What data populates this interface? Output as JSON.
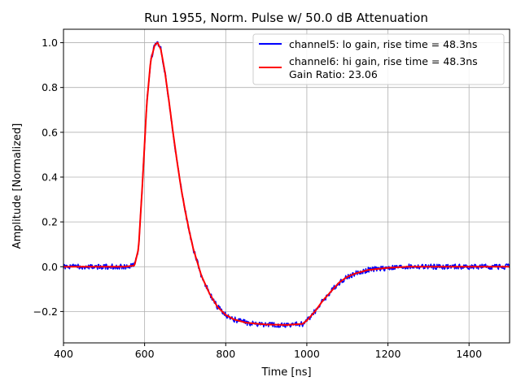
{
  "chart_data": {
    "type": "line",
    "title": "Run 1955, Norm. Pulse w/ 50.0 dB Attenuation",
    "xlabel": "Time [ns]",
    "ylabel": "Amplitude [Normalized]",
    "xlim": [
      400,
      1500
    ],
    "ylim": [
      -0.34,
      1.06
    ],
    "xticks": [
      400,
      600,
      800,
      1000,
      1200,
      1400
    ],
    "xtick_labels": [
      "400",
      "600",
      "800",
      "1000",
      "1200",
      "1400"
    ],
    "yticks": [
      -0.2,
      0.0,
      0.2,
      0.4,
      0.6,
      0.8,
      1.0
    ],
    "ytick_labels": [
      "−0.2",
      "0.0",
      "0.2",
      "0.4",
      "0.6",
      "0.8",
      "1.0"
    ],
    "grid": true,
    "legend": {
      "location": "top-right",
      "entries": [
        "channel5: lo gain, rise time = 48.3ns",
        "channel6: hi gain, rise time = 48.3ns",
        "Gain Ratio: 23.06"
      ]
    },
    "series": [
      {
        "name": "channel5: lo gain, rise time = 48.3ns",
        "color": "#0000ff",
        "noise": 0.012,
        "x": [
          400,
          450,
          500,
          550,
          575,
          585,
          595,
          605,
          615,
          625,
          632,
          640,
          650,
          660,
          670,
          680,
          690,
          700,
          710,
          720,
          740,
          760,
          780,
          800,
          820,
          850,
          880,
          900,
          950,
          990,
          1000,
          1020,
          1040,
          1060,
          1080,
          1100,
          1120,
          1150,
          1200,
          1250,
          1300,
          1400,
          1500
        ],
        "y": [
          0.0,
          0.0,
          0.0,
          0.0,
          0.005,
          0.08,
          0.38,
          0.72,
          0.92,
          0.99,
          1.0,
          0.97,
          0.87,
          0.74,
          0.6,
          0.47,
          0.35,
          0.25,
          0.16,
          0.08,
          -0.04,
          -0.12,
          -0.18,
          -0.215,
          -0.235,
          -0.25,
          -0.255,
          -0.258,
          -0.26,
          -0.255,
          -0.24,
          -0.2,
          -0.15,
          -0.11,
          -0.07,
          -0.045,
          -0.03,
          -0.015,
          -0.005,
          0.0,
          0.0,
          0.0,
          0.0
        ]
      },
      {
        "name": "channel6: hi gain, rise time = 48.3ns",
        "color": "#ff0000",
        "noise": 0.0,
        "x": [
          400,
          450,
          500,
          550,
          575,
          585,
          595,
          605,
          615,
          625,
          632,
          640,
          650,
          660,
          670,
          680,
          690,
          700,
          710,
          720,
          740,
          760,
          780,
          800,
          820,
          850,
          880,
          900,
          950,
          990,
          1000,
          1020,
          1040,
          1060,
          1080,
          1100,
          1120,
          1150,
          1200,
          1250,
          1300,
          1400,
          1500
        ],
        "y": [
          0.0,
          0.0,
          0.0,
          0.0,
          0.005,
          0.08,
          0.38,
          0.72,
          0.92,
          0.99,
          1.0,
          0.97,
          0.87,
          0.74,
          0.6,
          0.47,
          0.35,
          0.25,
          0.16,
          0.08,
          -0.04,
          -0.12,
          -0.18,
          -0.215,
          -0.235,
          -0.25,
          -0.255,
          -0.258,
          -0.26,
          -0.255,
          -0.24,
          -0.2,
          -0.15,
          -0.11,
          -0.07,
          -0.045,
          -0.03,
          -0.015,
          -0.005,
          0.0,
          0.0,
          0.0,
          0.0
        ]
      }
    ]
  }
}
